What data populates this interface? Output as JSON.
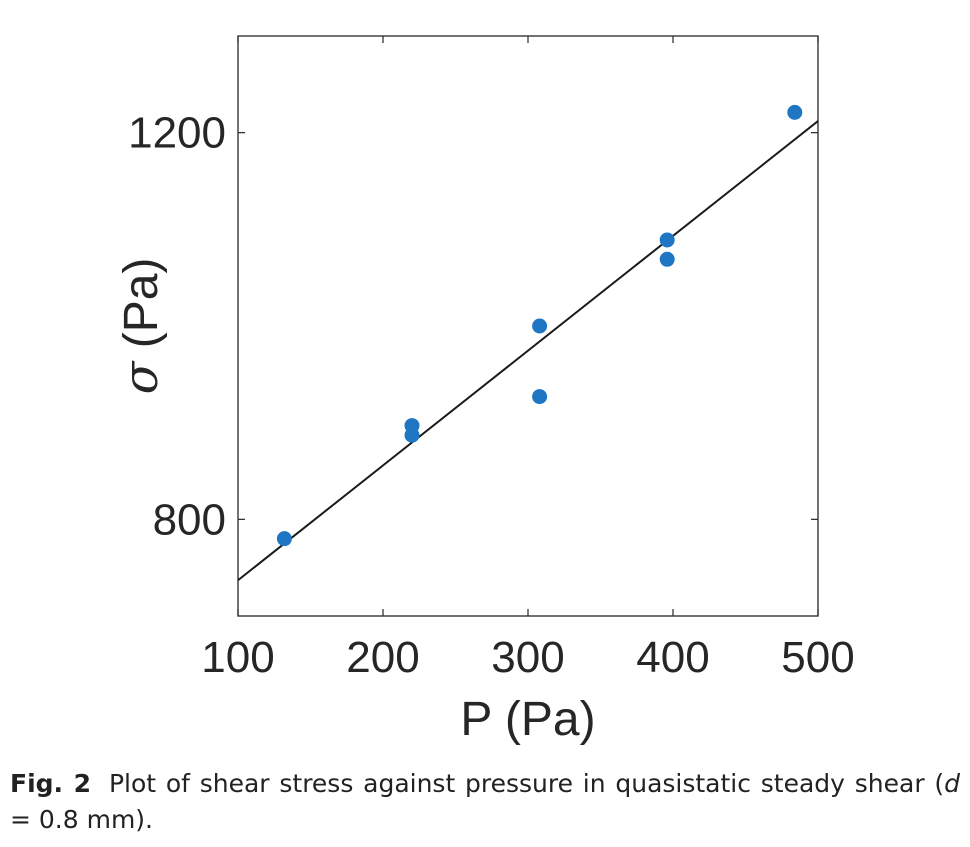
{
  "chart_data": {
    "type": "scatter",
    "xlabel": "P (Pa)",
    "ylabel_symbol": "σ",
    "ylabel_unit": " (Pa)",
    "xlim": [
      100,
      500
    ],
    "ylim": [
      700,
      1300
    ],
    "x_ticks": [
      100,
      200,
      300,
      400,
      500
    ],
    "y_ticks": [
      800,
      1200
    ],
    "x_tick_labels": [
      "100",
      "200",
      "300",
      "400",
      "500"
    ],
    "y_tick_labels": [
      "800",
      "1200"
    ],
    "grid": false,
    "series": [
      {
        "name": "data",
        "kind": "points",
        "color": "#1f77c4",
        "x": [
          132,
          220,
          220,
          308,
          308,
          396,
          396,
          484
        ],
        "y": [
          780,
          887,
          897,
          927,
          1000,
          1069,
          1089,
          1221
        ]
      },
      {
        "name": "linear fit",
        "kind": "line",
        "color": "#1a1a1a",
        "x": [
          100,
          500
        ],
        "y": [
          737,
          1212
        ]
      }
    ]
  },
  "caption": {
    "label": "Fig. 2",
    "text_before": "Plot of shear stress against pressure in quasistatic steady shear (",
    "italic_var": "d",
    "text_after": " = 0.8 mm)."
  }
}
